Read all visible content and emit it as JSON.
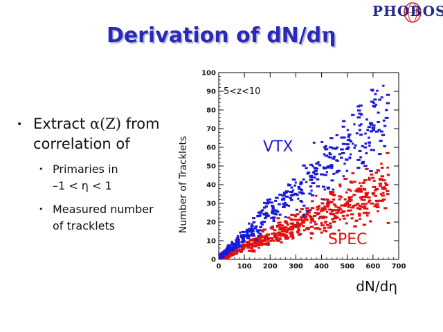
{
  "logo": {
    "text": "PHOBOS"
  },
  "slide": {
    "title_prefix": "Derivation of dN/d",
    "title_symbol": "η",
    "bullet": {
      "text_a": "Extract ",
      "symbol": "α(Z)",
      "text_b": " from correlation of"
    },
    "sub_bullets": [
      {
        "label": "Primaries in",
        "label2": "–1 < η < 1"
      },
      {
        "label": "Measured number",
        "label2": "of tracklets"
      }
    ]
  },
  "chart_data": {
    "type": "scatter",
    "annotation": "5<z<10",
    "ylabel": "Number of Tracklets",
    "xlabel": "dN/dη",
    "xlim": [
      0,
      700
    ],
    "ylim": [
      0,
      100
    ],
    "xticks": [
      0,
      100,
      200,
      300,
      400,
      500,
      600,
      700
    ],
    "yticks": [
      0,
      10,
      20,
      30,
      40,
      50,
      60,
      70,
      80,
      90,
      100
    ],
    "series": [
      {
        "name": "VTX",
        "color": "#1a1ad6",
        "slope": 0.12,
        "spread": 0.18,
        "n": 430
      },
      {
        "name": "SPEC",
        "color": "#e01010",
        "slope": 0.058,
        "spread": 0.22,
        "n": 620
      }
    ]
  }
}
